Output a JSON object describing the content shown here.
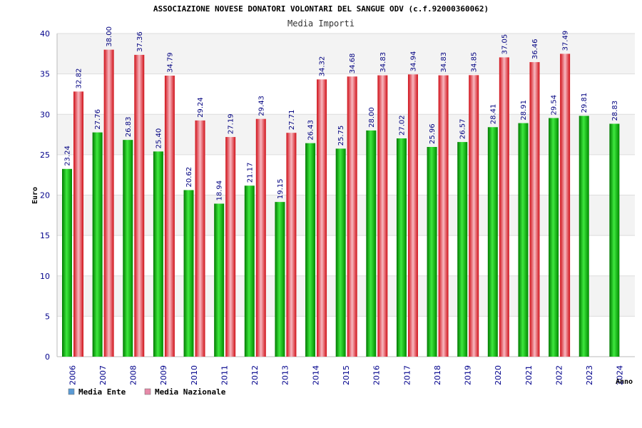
{
  "chart_data": {
    "type": "bar",
    "title": "ASSOCIAZIONE NOVESE DONATORI VOLONTARI DEL SANGUE ODV (c.f.92000360062)",
    "subtitle": "Media Importi",
    "xlabel": "Anno",
    "ylabel": "Euro",
    "ylim": [
      0,
      40
    ],
    "yticks": [
      "0",
      "5",
      "10",
      "15",
      "20",
      "25",
      "30",
      "35",
      "40"
    ],
    "grid": true,
    "legend_position": "bottom-left",
    "categories": [
      "2006",
      "2007",
      "2008",
      "2009",
      "2010",
      "2011",
      "2012",
      "2013",
      "2014",
      "2015",
      "2016",
      "2017",
      "2018",
      "2019",
      "2020",
      "2021",
      "2022",
      "2023",
      "2024"
    ],
    "series": [
      {
        "name": "Media Ente",
        "color": "#00b000",
        "legend_color": "#5b9bd5",
        "values": [
          23.24,
          27.76,
          26.83,
          25.4,
          20.62,
          18.94,
          21.17,
          19.15,
          26.43,
          25.75,
          28.0,
          27.02,
          25.96,
          26.57,
          28.41,
          28.91,
          29.54,
          29.81,
          28.83
        ],
        "labels": [
          "23.24",
          "27.76",
          "26.83",
          "25.40",
          "20.62",
          "18.94",
          "21.17",
          "19.15",
          "26.43",
          "25.75",
          "28.00",
          "27.02",
          "25.96",
          "26.57",
          "28.41",
          "28.91",
          "29.54",
          "29.81",
          "28.83"
        ]
      },
      {
        "name": "Media Nazionale",
        "color": "#e8202a",
        "legend_color": "#e68aa8",
        "values": [
          32.82,
          38.0,
          37.36,
          34.79,
          29.24,
          27.19,
          29.43,
          27.71,
          34.32,
          34.68,
          34.83,
          34.94,
          34.83,
          34.85,
          37.05,
          36.46,
          37.49,
          null,
          null
        ],
        "labels": [
          "32.82",
          "38.00",
          "37.36",
          "34.79",
          "29.24",
          "27.19",
          "29.43",
          "27.71",
          "34.32",
          "34.68",
          "34.83",
          "34.94",
          "34.83",
          "34.85",
          "37.05",
          "36.46",
          "37.49",
          null,
          null
        ]
      }
    ]
  }
}
